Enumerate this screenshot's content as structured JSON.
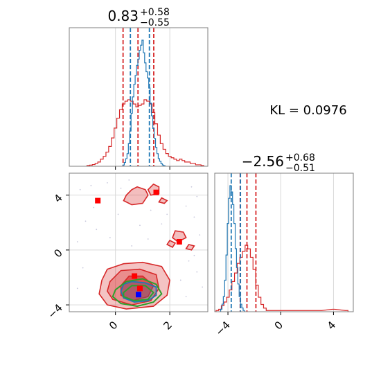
{
  "annotation": {
    "kl_text": "KL = 0.0976"
  },
  "colors": {
    "posterior_a": "#d62728",
    "posterior_b": "#1f77b4",
    "truth_contour": "#2ca02c",
    "marker_a": "#ff0000",
    "marker_b": "#0000ff",
    "grid": "#d9d9d9",
    "frame": "#7f7f7f"
  },
  "chart_data": [
    {
      "type": "line",
      "subtype": "histogram",
      "panel": "marginal-x",
      "title": {
        "main": "0.83",
        "sup": "+0.58",
        "sub": "−0.55"
      },
      "xlim": [
        -1.7,
        3.4
      ],
      "x_ticks": [
        0,
        2
      ],
      "series": [
        {
          "color": "#d62728",
          "x": [
            -1.0,
            -0.9,
            -0.8,
            -0.7,
            -0.6,
            -0.5,
            -0.4,
            -0.3,
            -0.2,
            -0.1,
            0.0,
            0.1,
            0.2,
            0.3,
            0.4,
            0.5,
            0.6,
            0.7,
            0.8,
            0.9,
            1.0,
            1.1,
            1.2,
            1.3,
            1.4,
            1.5,
            1.6,
            1.7,
            1.8,
            1.9,
            2.0,
            2.1,
            2.2,
            2.3,
            2.4,
            2.5,
            2.6,
            2.7,
            2.8,
            2.9,
            3.0,
            3.1,
            3.2
          ],
          "values": [
            0.005,
            0.008,
            0.012,
            0.02,
            0.03,
            0.05,
            0.07,
            0.1,
            0.14,
            0.2,
            0.27,
            0.34,
            0.4,
            0.44,
            0.46,
            0.47,
            0.46,
            0.44,
            0.42,
            0.43,
            0.44,
            0.47,
            0.46,
            0.44,
            0.38,
            0.3,
            0.22,
            0.16,
            0.12,
            0.09,
            0.07,
            0.06,
            0.05,
            0.04,
            0.05,
            0.04,
            0.03,
            0.03,
            0.02,
            0.02,
            0.01,
            0.01,
            0.005
          ],
          "quantile_lines": [
            0.28,
            0.83,
            1.41
          ]
        },
        {
          "color": "#1f77b4",
          "x": [
            0.3,
            0.35,
            0.4,
            0.45,
            0.5,
            0.55,
            0.6,
            0.65,
            0.7,
            0.75,
            0.8,
            0.85,
            0.9,
            0.95,
            1.0,
            1.05,
            1.1,
            1.15,
            1.2,
            1.25,
            1.3,
            1.35,
            1.4,
            1.45,
            1.5,
            1.55,
            1.6,
            1.65,
            1.7,
            1.75,
            1.8
          ],
          "values": [
            0.01,
            0.03,
            0.06,
            0.1,
            0.18,
            0.28,
            0.42,
            0.55,
            0.65,
            0.72,
            0.8,
            0.85,
            0.92,
            0.96,
            1.0,
            0.9,
            0.82,
            0.75,
            0.7,
            0.62,
            0.5,
            0.4,
            0.3,
            0.22,
            0.15,
            0.1,
            0.06,
            0.04,
            0.02,
            0.01,
            0.005
          ],
          "quantile_lines": [
            0.55,
            1.25
          ]
        }
      ]
    },
    {
      "type": "line",
      "subtype": "histogram",
      "panel": "marginal-y",
      "title": {
        "main": "−2.56",
        "sup": "+0.68",
        "sub": "−0.51"
      },
      "xlim": [
        -5.0,
        5.5
      ],
      "x_ticks": [
        -4,
        0,
        4
      ],
      "series": [
        {
          "color": "#d62728",
          "x": [
            -4.8,
            -4.6,
            -4.4,
            -4.2,
            -4.0,
            -3.8,
            -3.6,
            -3.4,
            -3.2,
            -3.0,
            -2.8,
            -2.6,
            -2.4,
            -2.2,
            -2.0,
            -1.8,
            -1.6,
            -1.4,
            -1.2,
            -1.0,
            0.0,
            1.0,
            2.0,
            3.0,
            4.0,
            5.0
          ],
          "values": [
            0.01,
            0.02,
            0.05,
            0.08,
            0.12,
            0.18,
            0.25,
            0.32,
            0.4,
            0.45,
            0.5,
            0.55,
            0.52,
            0.45,
            0.35,
            0.22,
            0.12,
            0.06,
            0.03,
            0.01,
            0.01,
            0.01,
            0.01,
            0.01,
            0.02,
            0.01
          ],
          "quantile_lines": [
            -3.07,
            -2.56,
            -1.88
          ]
        },
        {
          "color": "#1f77b4",
          "x": [
            -4.5,
            -4.4,
            -4.3,
            -4.2,
            -4.1,
            -4.0,
            -3.9,
            -3.8,
            -3.7,
            -3.6,
            -3.5,
            -3.4,
            -3.3,
            -3.2,
            -3.1,
            -3.0,
            -2.9,
            -2.8
          ],
          "values": [
            0.02,
            0.06,
            0.12,
            0.25,
            0.45,
            0.7,
            0.9,
            1.0,
            0.95,
            0.85,
            0.7,
            0.5,
            0.35,
            0.22,
            0.12,
            0.06,
            0.03,
            0.01
          ],
          "quantile_lines": [
            -3.75,
            -3.05
          ]
        }
      ]
    },
    {
      "type": "scatter",
      "subtype": "2d-contour",
      "panel": "joint",
      "xlim": [
        -1.7,
        3.4
      ],
      "ylim": [
        -4.5,
        5.6
      ],
      "x_ticks": [
        0,
        2
      ],
      "y_ticks": [
        -4,
        0,
        4
      ],
      "contours": {
        "red_outer": [
          [
            -0.5,
            -2.2
          ],
          [
            -0.3,
            -1.4
          ],
          [
            0.3,
            -1.0
          ],
          [
            1.0,
            -0.9
          ],
          [
            1.7,
            -1.2
          ],
          [
            2.0,
            -2.2
          ],
          [
            1.9,
            -3.3
          ],
          [
            1.4,
            -4.1
          ],
          [
            0.4,
            -4.3
          ],
          [
            -0.3,
            -4.0
          ],
          [
            -0.6,
            -3.2
          ]
        ],
        "red_middle": [
          [
            -0.2,
            -2.3
          ],
          [
            0.2,
            -1.5
          ],
          [
            0.9,
            -1.4
          ],
          [
            1.5,
            -1.8
          ],
          [
            1.6,
            -2.8
          ],
          [
            1.3,
            -3.7
          ],
          [
            0.6,
            -4.0
          ],
          [
            -0.1,
            -3.6
          ],
          [
            -0.3,
            -3.0
          ]
        ],
        "red_inner": [
          [
            0.2,
            -2.6
          ],
          [
            0.5,
            -1.9
          ],
          [
            1.0,
            -1.9
          ],
          [
            1.4,
            -2.6
          ],
          [
            1.2,
            -3.4
          ],
          [
            0.6,
            -3.7
          ],
          [
            0.2,
            -3.3
          ]
        ],
        "red_islands": [
          [
            [
              0.8,
              4.6
            ],
            [
              1.1,
              4.4
            ],
            [
              1.2,
              4.0
            ],
            [
              1.0,
              3.4
            ],
            [
              0.6,
              3.3
            ],
            [
              0.3,
              3.6
            ],
            [
              0.4,
              4.0
            ],
            [
              0.6,
              4.4
            ]
          ],
          [
            [
              1.4,
              4.8
            ],
            [
              1.6,
              4.6
            ],
            [
              1.6,
              4.1
            ],
            [
              1.3,
              4.0
            ],
            [
              1.2,
              4.4
            ]
          ],
          [
            [
              1.7,
              3.8
            ],
            [
              1.9,
              3.6
            ],
            [
              1.8,
              3.4
            ],
            [
              1.6,
              3.5
            ]
          ],
          [
            [
              2.2,
              1.4
            ],
            [
              2.5,
              1.3
            ],
            [
              2.6,
              0.9
            ],
            [
              2.3,
              0.6
            ],
            [
              2.1,
              0.9
            ]
          ],
          [
            [
              2.0,
              0.7
            ],
            [
              2.2,
              0.5
            ],
            [
              2.1,
              0.2
            ],
            [
              1.9,
              0.4
            ]
          ],
          [
            [
              2.7,
              0.4
            ],
            [
              2.9,
              0.3
            ],
            [
              2.8,
              0.0
            ],
            [
              2.6,
              0.1
            ]
          ]
        ],
        "blue": [
          [
            0.3,
            -2.5
          ],
          [
            0.6,
            -2.3
          ],
          [
            1.1,
            -2.4
          ],
          [
            1.5,
            -2.7
          ],
          [
            1.5,
            -3.3
          ],
          [
            1.2,
            -3.7
          ],
          [
            0.7,
            -3.8
          ],
          [
            0.3,
            -3.5
          ],
          [
            0.2,
            -3.0
          ]
        ],
        "green_outer": [
          [
            0.0,
            -2.9
          ],
          [
            0.4,
            -2.3
          ],
          [
            1.0,
            -2.1
          ],
          [
            1.5,
            -2.5
          ],
          [
            1.7,
            -3.2
          ],
          [
            1.4,
            -3.8
          ],
          [
            0.8,
            -4.1
          ],
          [
            0.2,
            -3.9
          ],
          [
            -0.1,
            -3.4
          ]
        ],
        "green_inner": [
          [
            0.3,
            -3.1
          ],
          [
            0.6,
            -2.6
          ],
          [
            1.1,
            -2.6
          ],
          [
            1.4,
            -3.1
          ],
          [
            1.2,
            -3.6
          ],
          [
            0.7,
            -3.7
          ],
          [
            0.3,
            -3.4
          ]
        ]
      },
      "points": [
        {
          "x": -0.65,
          "y": 3.6,
          "color": "#ff0000"
        },
        {
          "x": 1.5,
          "y": 4.2,
          "color": "#ff0000"
        },
        {
          "x": 2.35,
          "y": 0.6,
          "color": "#ff0000"
        },
        {
          "x": 0.7,
          "y": -1.9,
          "color": "#ff0000"
        },
        {
          "x": 0.9,
          "y": -2.8,
          "color": "#ff0000"
        },
        {
          "x": 0.85,
          "y": -3.25,
          "color": "#0000ff"
        }
      ]
    }
  ]
}
